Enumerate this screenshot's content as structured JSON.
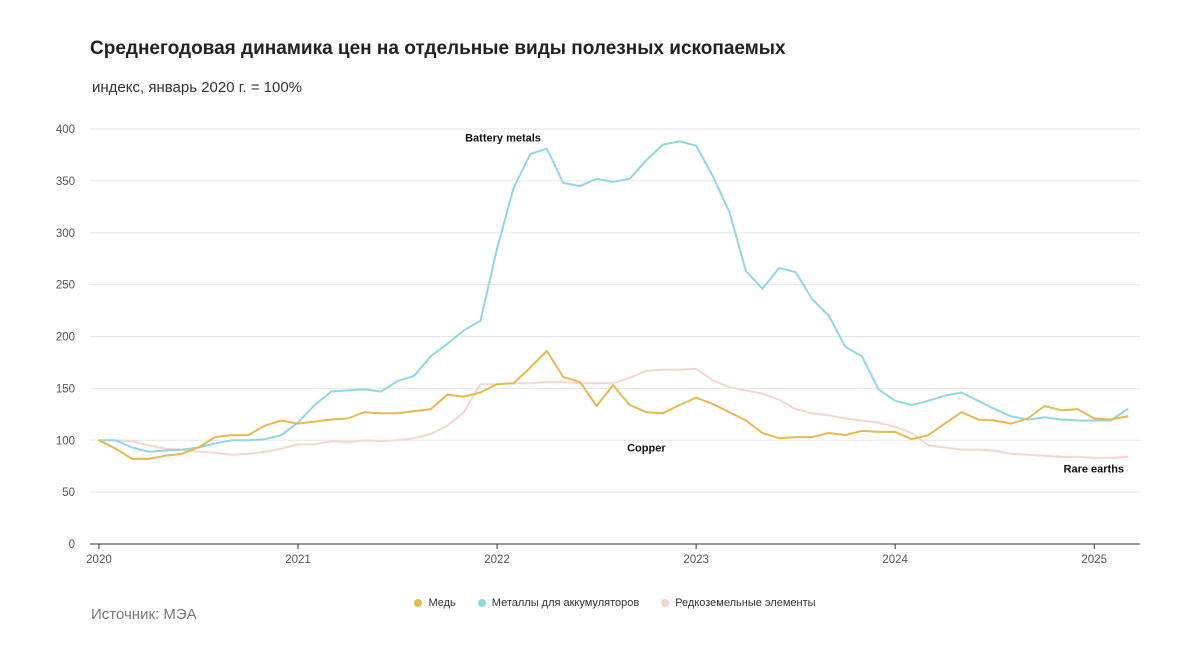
{
  "title": "Среднегодовая динамика цен на отдельные виды полезных ископаемых",
  "subtitle": "индекс, январь 2020 г. = 100%",
  "source": "Источник: МЭА",
  "chart_data": {
    "type": "line",
    "title": "Среднегодовая динамика цен на отдельные виды полезных ископаемых",
    "subtitle": "индекс, январь 2020 г. = 100%",
    "xlabel": "",
    "ylabel": "",
    "ylim": [
      0,
      400
    ],
    "yticks": [
      "0",
      "50",
      "100",
      "150",
      "200",
      "250",
      "300",
      "350",
      "400"
    ],
    "xticks": [
      "2020",
      "2021",
      "2022",
      "2023",
      "2024",
      "2025"
    ],
    "grid": true,
    "legend_position": "bottom",
    "x": [
      2020.0,
      2020.083,
      2020.167,
      2020.25,
      2020.333,
      2020.417,
      2020.5,
      2020.583,
      2020.667,
      2020.75,
      2020.833,
      2020.917,
      2021.0,
      2021.083,
      2021.167,
      2021.25,
      2021.333,
      2021.417,
      2021.5,
      2021.583,
      2021.667,
      2021.75,
      2021.833,
      2021.917,
      2022.0,
      2022.083,
      2022.167,
      2022.25,
      2022.333,
      2022.417,
      2022.5,
      2022.583,
      2022.667,
      2022.75,
      2022.833,
      2022.917,
      2023.0,
      2023.083,
      2023.167,
      2023.25,
      2023.333,
      2023.417,
      2023.5,
      2023.583,
      2023.667,
      2023.75,
      2023.833,
      2023.917,
      2024.0,
      2024.083,
      2024.167,
      2024.25,
      2024.333,
      2024.417,
      2024.5,
      2024.583,
      2024.667,
      2024.75,
      2024.833,
      2024.917,
      2025.0,
      2025.083,
      2025.167
    ],
    "series": [
      {
        "name": "Медь",
        "color": "#e8b84e",
        "label": "Copper",
        "values": [
          100,
          92,
          82,
          82,
          85,
          87,
          93,
          103,
          105,
          105,
          114,
          119,
          116,
          118,
          120,
          121,
          127,
          126,
          126,
          128,
          130,
          144,
          142,
          146,
          154,
          155,
          170,
          186,
          161,
          156,
          133,
          153,
          134,
          127,
          126,
          134,
          141,
          135,
          127,
          119,
          107,
          102,
          103,
          103,
          107,
          105,
          109,
          108,
          108,
          101,
          105,
          116,
          127,
          120,
          119,
          116,
          121,
          133,
          129,
          130,
          121,
          120,
          123
        ]
      },
      {
        "name": "Металлы для аккумуляторов",
        "color": "#8fd7e2",
        "label": "Battery metals",
        "values": [
          100,
          100,
          93,
          89,
          90,
          91,
          93,
          97,
          100,
          100,
          101,
          105,
          117,
          134,
          147,
          148,
          149,
          147,
          157,
          162,
          181,
          193,
          206,
          215,
          285,
          343,
          376,
          381,
          348,
          345,
          352,
          349,
          352,
          370,
          385,
          388,
          384,
          355,
          320,
          263,
          246,
          266,
          262,
          236,
          220,
          190,
          181,
          149,
          138,
          134,
          138,
          143,
          146,
          138,
          130,
          123,
          120,
          122,
          120,
          119,
          119,
          119,
          130
        ]
      },
      {
        "name": "Редкоземельные элементы",
        "color": "#f5d5cf",
        "label": "Rare earths",
        "values": [
          100,
          100,
          99,
          95,
          92,
          91,
          89,
          88,
          86,
          87,
          89,
          92,
          96,
          96,
          99,
          98,
          100,
          99,
          100,
          102,
          106,
          114,
          127,
          154,
          154,
          155,
          155,
          156,
          156,
          155,
          155,
          155,
          160,
          167,
          168,
          168,
          169,
          158,
          151,
          148,
          145,
          139,
          130,
          126,
          124,
          121,
          119,
          117,
          113,
          107,
          95,
          93,
          91,
          91,
          90,
          87,
          86,
          85,
          84,
          84,
          83,
          83,
          84
        ]
      }
    ]
  }
}
